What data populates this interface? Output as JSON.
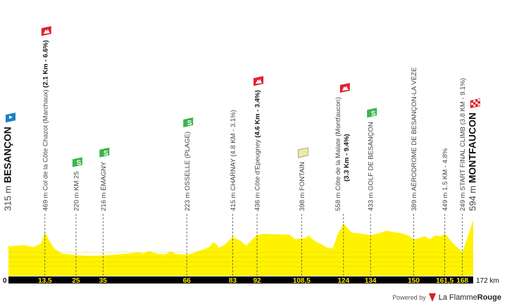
{
  "chart_data": {
    "type": "area",
    "x_unit": "km",
    "y_unit": "m",
    "xlim": [
      0,
      172
    ],
    "x_start_label": "0",
    "x_end_label": "172 km",
    "fill_color": "#fff200",
    "axis_bar_color": "#000000",
    "km_label_color": "#f5e600",
    "profile": [
      [
        0,
        315
      ],
      [
        3,
        322
      ],
      [
        6,
        328
      ],
      [
        9,
        305
      ],
      [
        12,
        340
      ],
      [
        13.5,
        469
      ],
      [
        15,
        380
      ],
      [
        17,
        290
      ],
      [
        20,
        235
      ],
      [
        25,
        220
      ],
      [
        30,
        212
      ],
      [
        35,
        216
      ],
      [
        40,
        226
      ],
      [
        45,
        240
      ],
      [
        48,
        252
      ],
      [
        50,
        238
      ],
      [
        52,
        265
      ],
      [
        55,
        235
      ],
      [
        58,
        228
      ],
      [
        60,
        262
      ],
      [
        62,
        232
      ],
      [
        66,
        223
      ],
      [
        68,
        240
      ],
      [
        70,
        262
      ],
      [
        74,
        300
      ],
      [
        76,
        362
      ],
      [
        78,
        300
      ],
      [
        80,
        330
      ],
      [
        83,
        415
      ],
      [
        86,
        372
      ],
      [
        88,
        322
      ],
      [
        90,
        382
      ],
      [
        92,
        436
      ],
      [
        95,
        448
      ],
      [
        100,
        442
      ],
      [
        104,
        440
      ],
      [
        106,
        392
      ],
      [
        108.5,
        398
      ],
      [
        110,
        405
      ],
      [
        111,
        432
      ],
      [
        113,
        380
      ],
      [
        116,
        332
      ],
      [
        118,
        300
      ],
      [
        120,
        292
      ],
      [
        122,
        450
      ],
      [
        124,
        558
      ],
      [
        127,
        462
      ],
      [
        130,
        452
      ],
      [
        134,
        433
      ],
      [
        138,
        462
      ],
      [
        140,
        482
      ],
      [
        142,
        468
      ],
      [
        145,
        458
      ],
      [
        148,
        430
      ],
      [
        150,
        389
      ],
      [
        152,
        402
      ],
      [
        154,
        422
      ],
      [
        156,
        390
      ],
      [
        158,
        432
      ],
      [
        160,
        420
      ],
      [
        161.5,
        449
      ],
      [
        163,
        400
      ],
      [
        165,
        332
      ],
      [
        167,
        282
      ],
      [
        168,
        249
      ],
      [
        170,
        420
      ],
      [
        172,
        594
      ]
    ],
    "km_ticks": [
      {
        "km": 13.5,
        "label": "13,5"
      },
      {
        "km": 25,
        "label": "25"
      },
      {
        "km": 35,
        "label": "35"
      },
      {
        "km": 66,
        "label": "66"
      },
      {
        "km": 83,
        "label": "83"
      },
      {
        "km": 92,
        "label": "92"
      },
      {
        "km": 108.5,
        "label": "108,5"
      },
      {
        "km": 124,
        "label": "124"
      },
      {
        "km": 134,
        "label": "134"
      },
      {
        "km": 150,
        "label": "150"
      },
      {
        "km": 161.5,
        "label": "161,5"
      },
      {
        "km": 168,
        "label": "168"
      }
    ],
    "points": [
      {
        "km": 0,
        "icon": "start-flag-icon",
        "text": "315 m ",
        "bold": "BESANÇON",
        "big": true
      },
      {
        "km": 13.5,
        "icon": "mountain-icon",
        "text": "469 m Col de la Côte Chazot (Marchaux) ",
        "bold": "(2.1 Km - 6.6%)"
      },
      {
        "km": 25,
        "icon": "sprint-icon",
        "text": "220 m KM 25",
        "bold": ""
      },
      {
        "km": 35,
        "icon": "sprint-icon",
        "text": "216 m ÉMAGNY",
        "bold": ""
      },
      {
        "km": 66,
        "icon": "sprint-icon",
        "text": "223 m OSSELLE (PLAGE)",
        "bold": ""
      },
      {
        "km": 83,
        "icon": "",
        "text": "415 m CHARNAY (4.8 KM - 3.1%)",
        "bold": ""
      },
      {
        "km": 92,
        "icon": "mountain-icon",
        "text": "436 m Côte d'Epeugney ",
        "bold": "(4.6 Km - 3.4%)"
      },
      {
        "km": 108.5,
        "icon": "feed-zone-icon",
        "text": "398 m FONTAIN",
        "bold": ""
      },
      {
        "km": 124,
        "icon": "mountain-icon",
        "text": "558 m Côte de la Malate (Montfaucon)",
        "bold": "(3.3 Km - 9.4%)",
        "two_line": true
      },
      {
        "km": 134,
        "icon": "sprint-icon",
        "text": "433 m GOLF DE BESANÇON",
        "bold": ""
      },
      {
        "km": 150,
        "icon": "",
        "text": "389 m AÉRODROME DE BESANÇON-LA VÈZE",
        "bold": ""
      },
      {
        "km": 161.5,
        "icon": "",
        "text": "449 m 1.5 KM - 4.8%",
        "bold": ""
      },
      {
        "km": 168,
        "icon": "",
        "text": "249 m START FINAL CLIMB (3.8 KM - 9.1%)",
        "bold": ""
      },
      {
        "km": 172,
        "icon": "finish-flag-icon",
        "text": "594 m ",
        "bold": "MONTFAUCON",
        "big": true
      }
    ]
  },
  "footer": {
    "powered_by": "Powered by",
    "brand_a": "La Flamme",
    "brand_b": "Rouge"
  }
}
